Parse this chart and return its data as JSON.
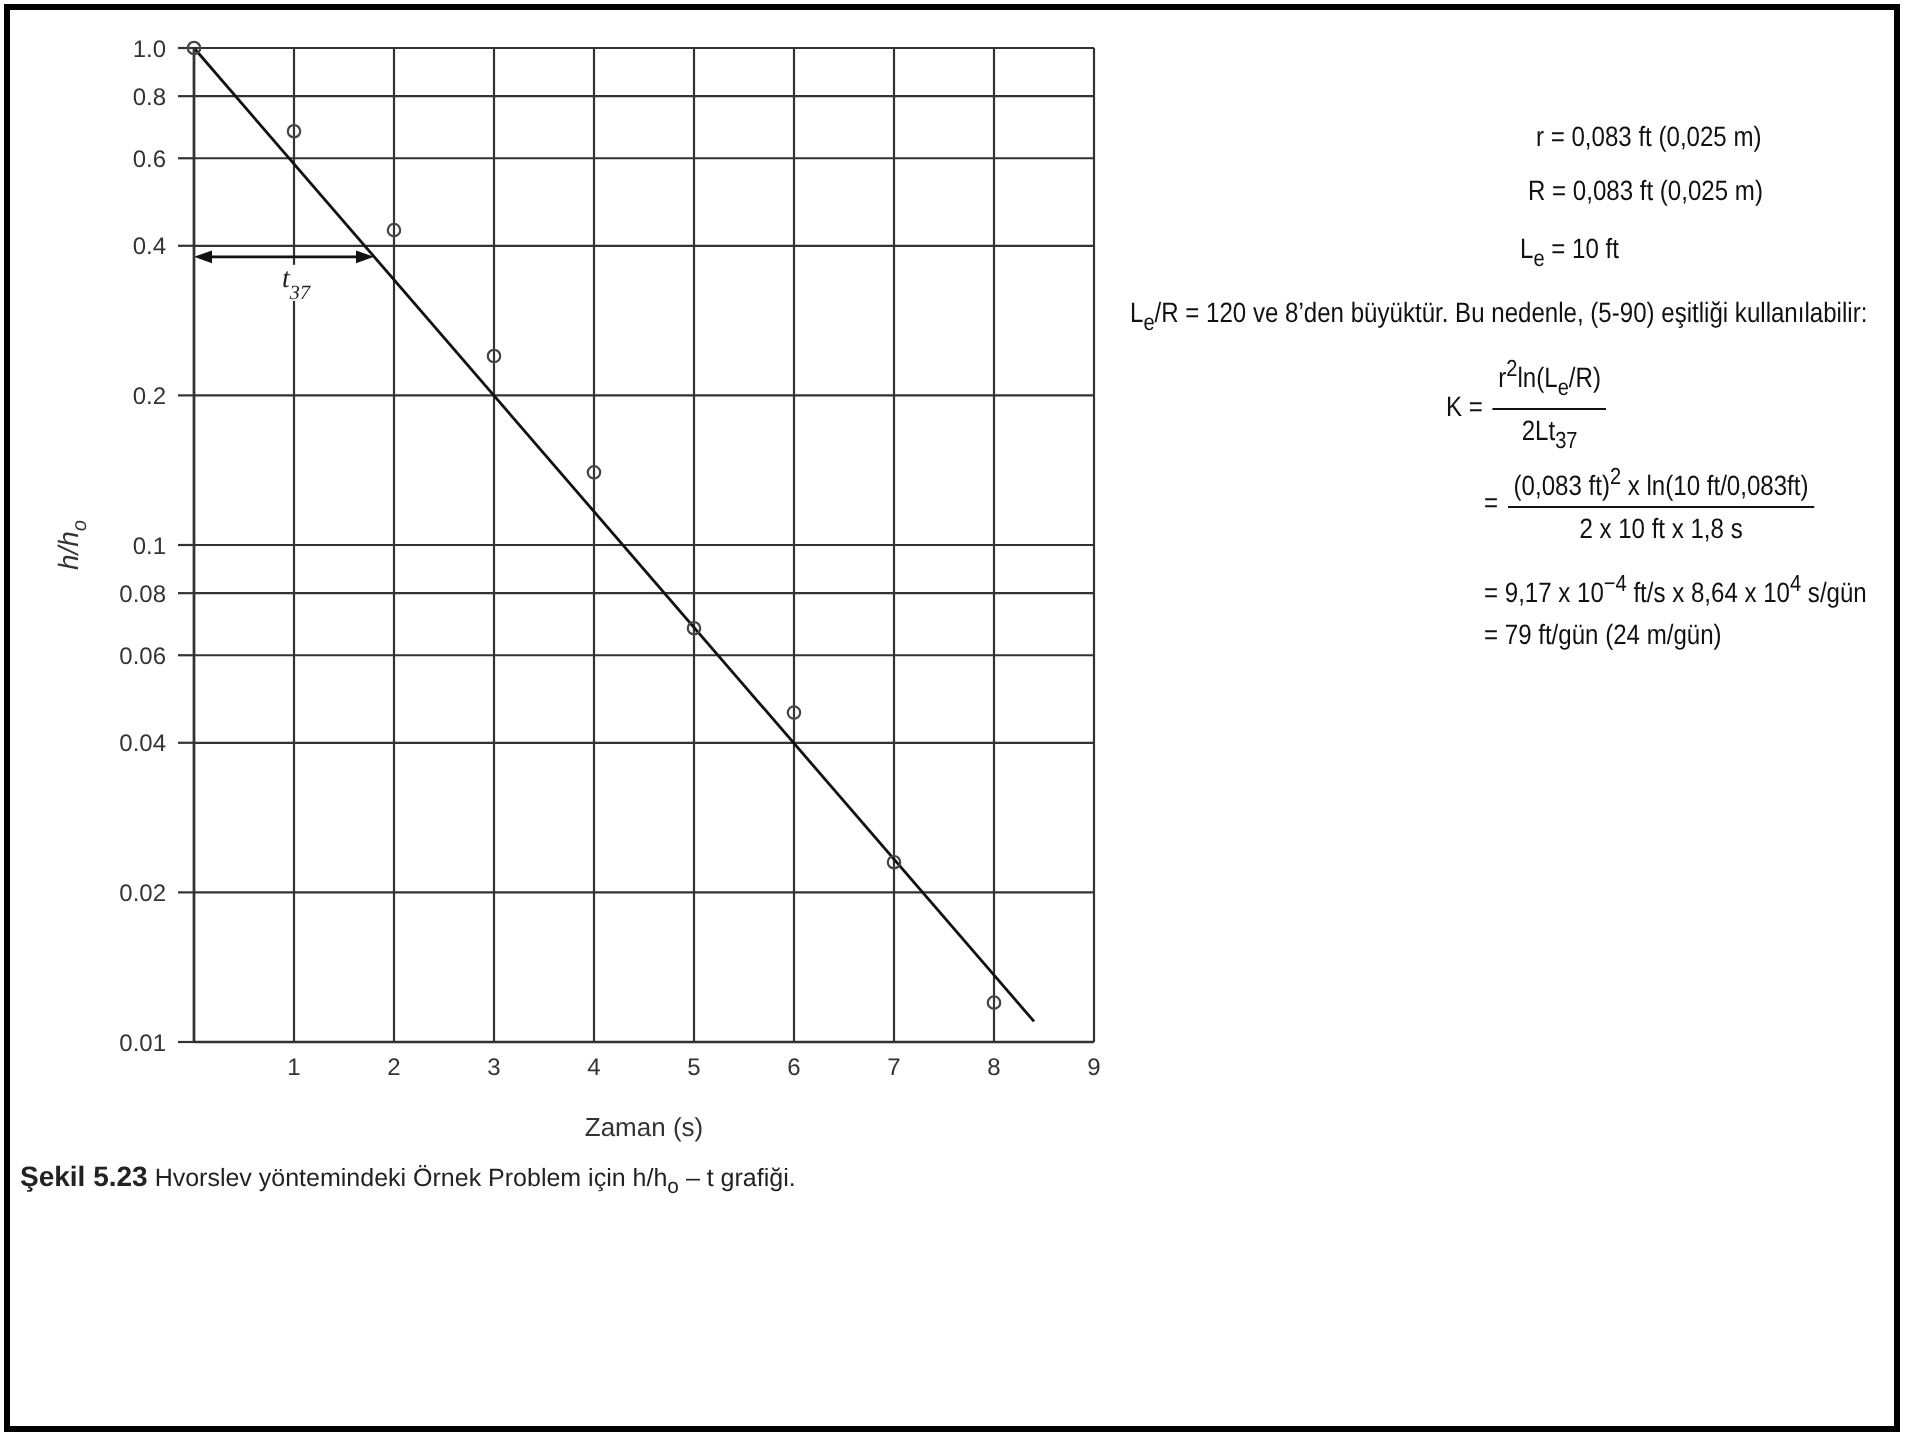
{
  "chart_data": {
    "type": "scatter",
    "title": "Şekil 5.23 Hvorslev yöntemindeki Örnek Problem için h/h$_{o}$ – t grafiği.",
    "xlabel": "Zaman (s)",
    "ylabel": "h/h$_{o}$",
    "series": [
      {
        "color": "#444444",
        "marker": "circle",
        "x": [
          0,
          1,
          2,
          3,
          4,
          5,
          6,
          7,
          8
        ],
        "values": [
          1.0,
          0.68,
          0.43,
          0.24,
          0.14,
          0.068,
          0.046,
          0.023,
          0.012
        ]
      },
      {
        "type": "line",
        "color": "#111111",
        "x": [
          0,
          8.4
        ],
        "values": [
          1.0,
          0.011
        ]
      }
    ],
    "xlim": [
      0,
      9
    ],
    "xticks": [
      1,
      2,
      3,
      4,
      5,
      6,
      7,
      8,
      9
    ],
    "ylim": [
      0.01,
      1
    ],
    "yticks": [
      0.01,
      0.02,
      0.04,
      0.06,
      0.08,
      0.1,
      0.2,
      0.4,
      0.6,
      0.8,
      {
        "value": 1,
        "label": "1.0"
      }
    ],
    "log": "y",
    "grid": true,
    "annotations": [
      {
        "text": "t$_{37}$",
        "x": 1.8,
        "y": 0.38
      },
      "r = 0,083 ft (0,025 m)",
      "R = 0,083 ft (0,025 m)",
      "L$_{e}$ = 10 ft",
      "L$_{e}$/R = 120 ve 8’den büyüktür. Bu nedenle, (5-90) eşitliği kullanılabilir:",
      "K =",
      "r$^{2}$ln(L$_{e}$/R)",
      "2Lt$_{37}$",
      "=",
      "(0,083 ft)$^{2}$ x ln(10 ft/0,083ft)",
      "2 x 10 ft x 1,8 s",
      "= 9,17 x 10$^{−4}$ ft/s x 8,64 x 10$^{4}$ s/gün",
      "= 79 ft/gün (24 m/gün)"
    ]
  }
}
